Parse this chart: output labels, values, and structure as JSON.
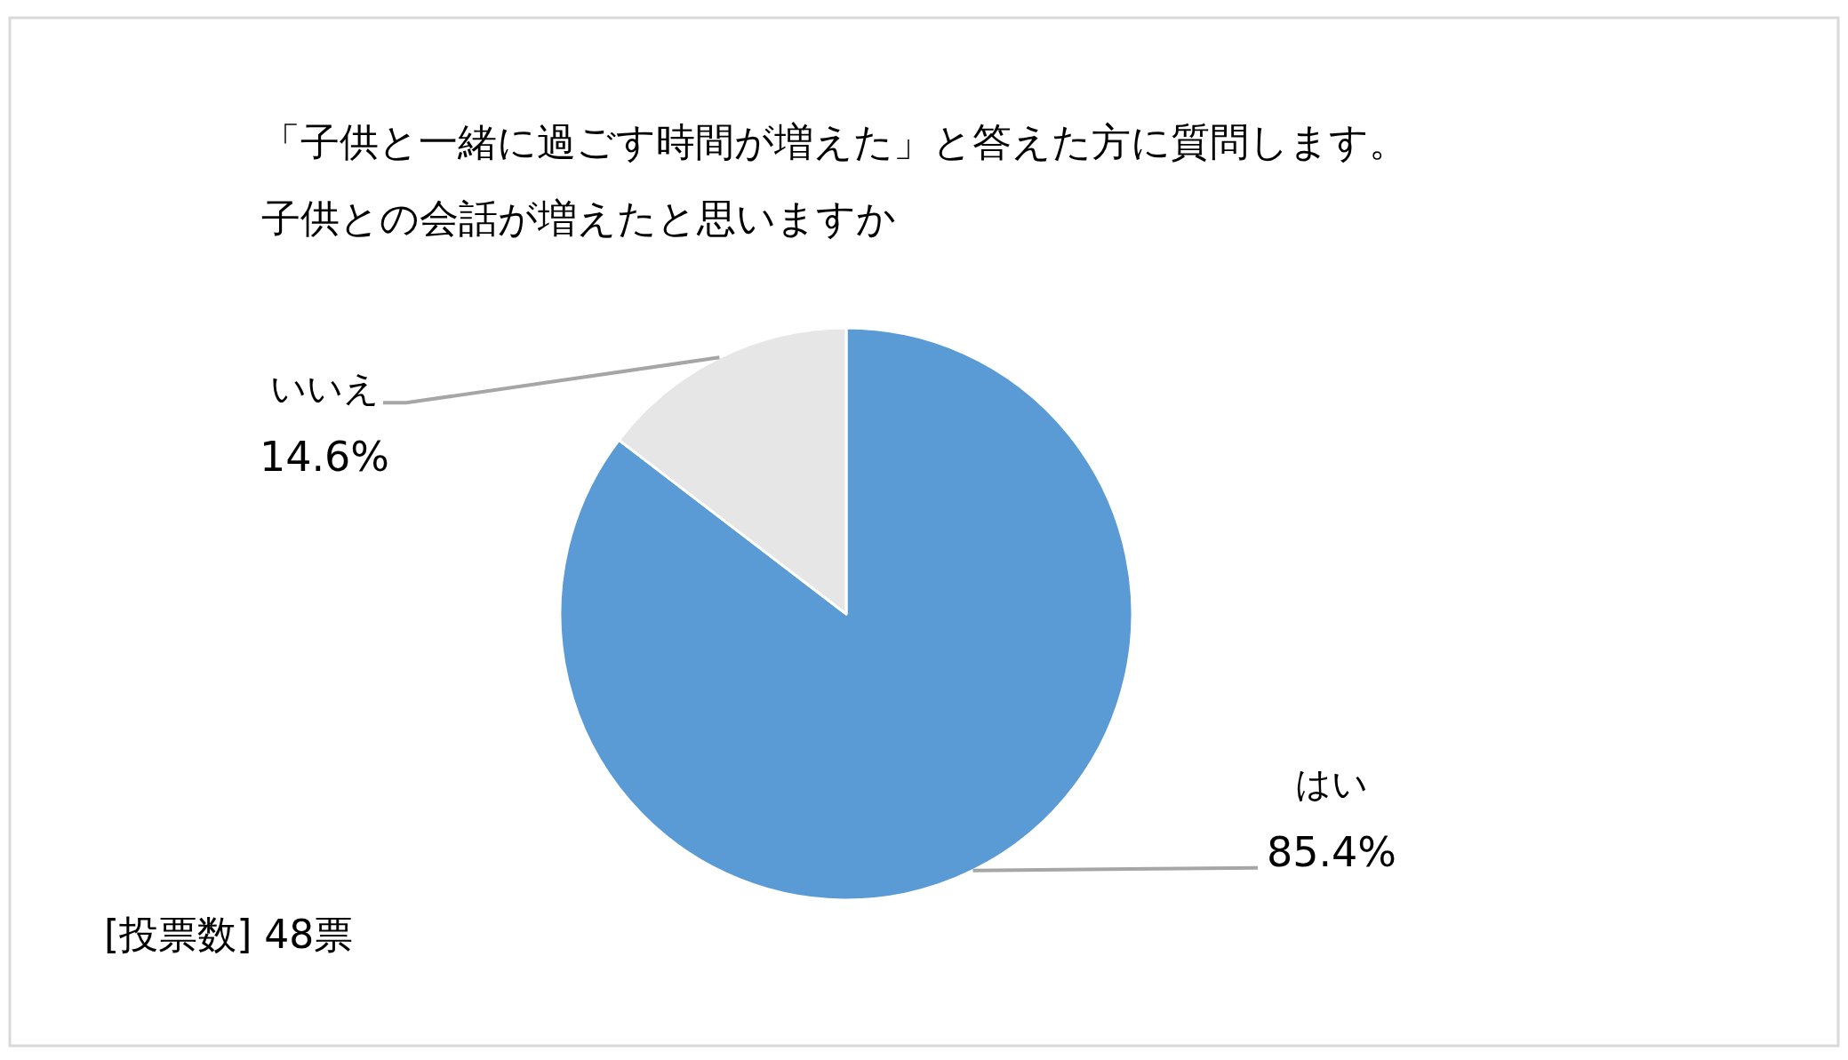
{
  "chart_data": {
    "type": "pie",
    "title": "「子供と一緒に過ごす時間が増えた」と答えた方に質問します。",
    "subtitle": "子供との会話が増えたと思いますか",
    "categories": [
      "はい",
      "いいえ"
    ],
    "values": [
      85.4,
      14.6
    ],
    "colors": [
      "#5b9bd5",
      "#e7e6e6"
    ],
    "value_labels": [
      "85.4%",
      "14.6%"
    ],
    "annotations": [
      "[投票数] 48票"
    ]
  }
}
